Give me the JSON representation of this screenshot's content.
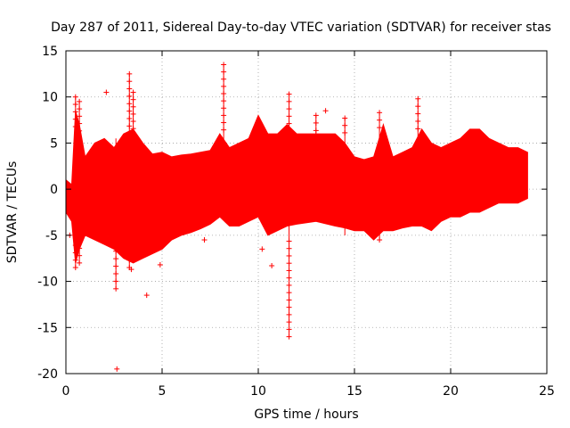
{
  "chart_data": {
    "type": "scatter",
    "title": "Day 287 of 2011, Sidereal Day-to-day VTEC variation (SDTVAR) for receiver stas",
    "xlabel": "GPS time / hours",
    "ylabel": "SDTVAR / TECUs",
    "xlim": [
      0,
      25
    ],
    "ylim": [
      -20,
      15
    ],
    "xticks": [
      0,
      5,
      10,
      15,
      20,
      25
    ],
    "yticks": [
      -20,
      -15,
      -10,
      -5,
      0,
      5,
      10,
      15
    ],
    "xtick_labels": [
      "0",
      "5",
      "10",
      "15",
      "20",
      "25"
    ],
    "ytick_labels": [
      "-20",
      "-15",
      "-10",
      "-5",
      "0",
      "5",
      "10",
      "15"
    ],
    "grid": true,
    "marker": "+",
    "color": "#ff0000",
    "envelope": {
      "x": [
        0.0,
        0.3,
        0.5,
        0.7,
        1.0,
        1.5,
        2.0,
        2.5,
        3.0,
        3.5,
        4.0,
        4.5,
        5.0,
        5.5,
        6.0,
        6.5,
        7.0,
        7.5,
        8.0,
        8.5,
        9.0,
        9.5,
        10.0,
        10.5,
        11.0,
        11.5,
        12.0,
        13.0,
        14.0,
        14.5,
        15.0,
        15.5,
        16.0,
        16.5,
        17.0,
        17.5,
        18.0,
        18.5,
        19.0,
        19.5,
        20.0,
        20.5,
        21.0,
        21.5,
        22.0,
        22.5,
        23.0,
        23.5,
        24.0
      ],
      "upper": [
        1.0,
        0.5,
        8.5,
        7.0,
        3.5,
        5.0,
        5.5,
        4.5,
        6.0,
        6.5,
        5.0,
        3.8,
        4.0,
        3.5,
        3.7,
        3.8,
        4.0,
        4.2,
        6.0,
        4.5,
        5.0,
        5.5,
        8.0,
        6.0,
        6.0,
        7.0,
        6.0,
        6.0,
        6.0,
        5.0,
        3.5,
        3.2,
        3.5,
        7.0,
        3.5,
        4.0,
        4.5,
        6.5,
        5.0,
        4.5,
        5.0,
        5.5,
        6.5,
        6.5,
        5.5,
        5.0,
        4.5,
        4.5,
        4.0
      ],
      "lower": [
        -2.5,
        -3.5,
        -8.0,
        -6.5,
        -5.0,
        -5.5,
        -6.0,
        -6.5,
        -7.5,
        -8.0,
        -7.5,
        -7.0,
        -6.5,
        -5.5,
        -5.0,
        -4.7,
        -4.3,
        -3.8,
        -3.0,
        -4.0,
        -4.0,
        -3.5,
        -3.0,
        -5.0,
        -4.5,
        -4.0,
        -3.8,
        -3.5,
        -4.0,
        -4.2,
        -4.5,
        -4.5,
        -5.5,
        -4.5,
        -4.5,
        -4.2,
        -4.0,
        -4.0,
        -4.5,
        -3.5,
        -3.0,
        -3.0,
        -2.5,
        -2.5,
        -2.0,
        -1.5,
        -1.5,
        -1.5,
        -1.0
      ]
    },
    "spikes": [
      {
        "x": 0.5,
        "ymin": -8.5,
        "ymax": 10.0
      },
      {
        "x": 0.7,
        "ymin": -8.0,
        "ymax": 9.5
      },
      {
        "x": 2.6,
        "ymin": -10.8,
        "ymax": 5.5
      },
      {
        "x": 3.3,
        "ymin": -8.5,
        "ymax": 12.5
      },
      {
        "x": 3.5,
        "ymin": -6.0,
        "ymax": 10.5
      },
      {
        "x": 8.2,
        "ymin": -3.0,
        "ymax": 13.5
      },
      {
        "x": 11.6,
        "ymin": -16.0,
        "ymax": 10.3
      },
      {
        "x": 13.0,
        "ymin": -3.5,
        "ymax": 8.0
      },
      {
        "x": 14.5,
        "ymin": -5.0,
        "ymax": 7.7
      },
      {
        "x": 16.3,
        "ymin": -5.5,
        "ymax": 8.3
      },
      {
        "x": 18.3,
        "ymin": -4.0,
        "ymax": 9.8
      }
    ],
    "outliers": [
      {
        "x": 2.1,
        "y": 10.5
      },
      {
        "x": 2.65,
        "y": -19.5
      },
      {
        "x": 4.2,
        "y": -11.5
      },
      {
        "x": 3.4,
        "y": -8.7
      },
      {
        "x": 7.2,
        "y": -5.5
      },
      {
        "x": 10.2,
        "y": -6.5
      },
      {
        "x": 10.7,
        "y": -8.3
      },
      {
        "x": 4.9,
        "y": -8.2
      },
      {
        "x": 13.5,
        "y": 8.5
      },
      {
        "x": 0.2,
        "y": -5.0
      }
    ]
  }
}
